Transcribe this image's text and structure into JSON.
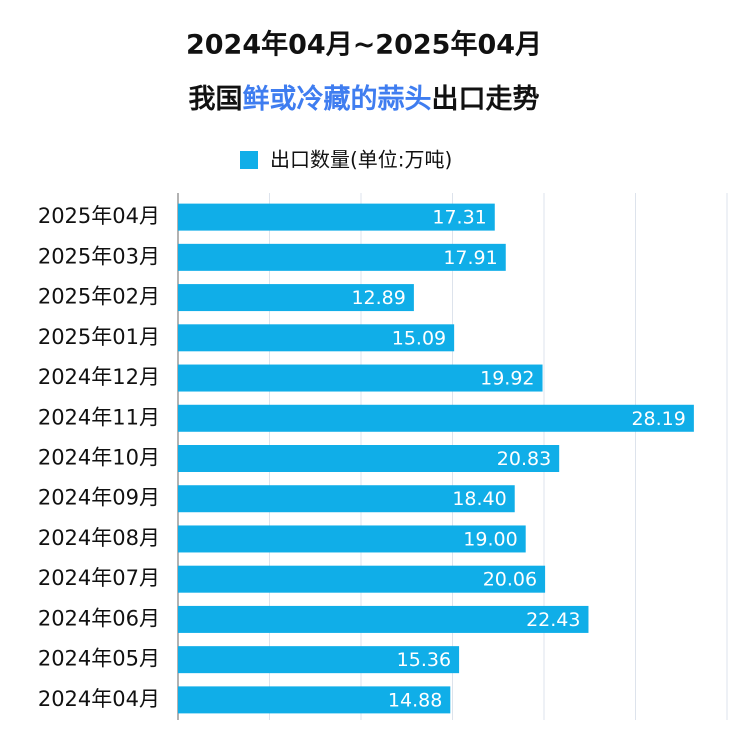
{
  "chart_data": {
    "type": "bar",
    "orientation": "horizontal",
    "title": "2024年04月~2025年04月",
    "subtitle_parts": [
      "我国",
      "鲜或冷藏的蒜头",
      "出口走势"
    ],
    "subtitle_highlight_color": "#3f7df0",
    "series": [
      {
        "name": "出口数量(单位:万吨)",
        "color": "#10aee8",
        "values": [
          17.31,
          17.91,
          12.89,
          15.09,
          19.92,
          28.19,
          20.83,
          18.4,
          19.0,
          20.06,
          22.43,
          15.36,
          14.88
        ],
        "value_labels": [
          "17.31",
          "17.91",
          "12.89",
          "15.09",
          "19.92",
          "28.19",
          "20.83",
          "18.40",
          "19.00",
          "20.06",
          "22.43",
          "15.36",
          "14.88"
        ]
      }
    ],
    "categories": [
      "2025年04月",
      "2025年03月",
      "2025年02月",
      "2025年01月",
      "2024年12月",
      "2024年11月",
      "2024年10月",
      "2024年09月",
      "2024年08月",
      "2024年07月",
      "2024年06月",
      "2024年05月",
      "2024年04月"
    ],
    "xlim": [
      0,
      30
    ],
    "xticks": [
      0,
      5,
      10,
      15,
      20,
      25,
      30
    ],
    "grid": true,
    "legend": "top"
  }
}
